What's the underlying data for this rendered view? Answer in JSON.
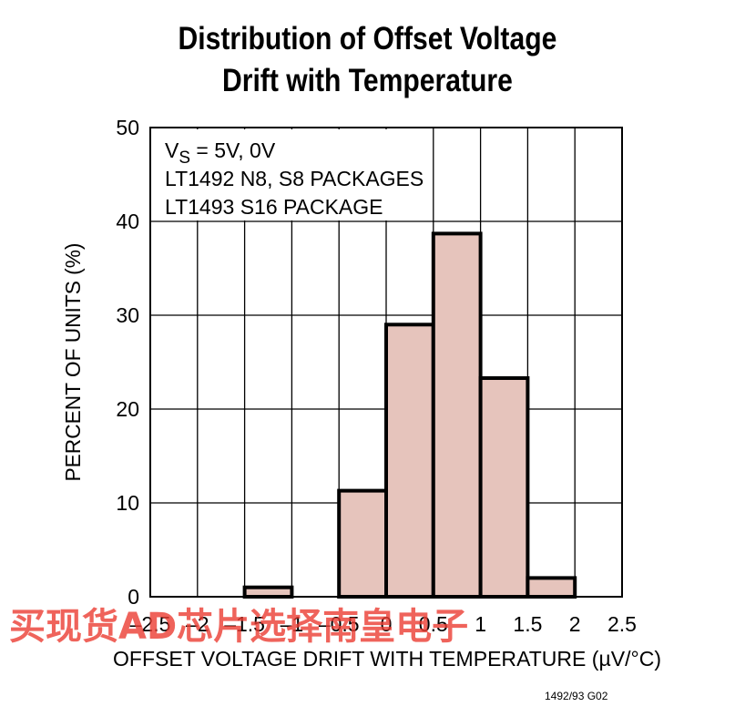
{
  "title_lines": [
    "Distribution of Offset Voltage",
    "Drift with Temperature"
  ],
  "chart_data": {
    "type": "bar",
    "title": "Distribution of Offset Voltage Drift with Temperature",
    "xlabel": "OFFSET VOLTAGE DRIFT WITH TEMPERATURE (µV/°C)",
    "ylabel": "PERCENT OF UNITS (%)",
    "xlim": [
      -2.5,
      2.5
    ],
    "ylim": [
      0,
      50
    ],
    "x_ticks": [
      -2.5,
      -2,
      -1.5,
      -1,
      -0.5,
      0,
      0.5,
      1,
      1.5,
      2,
      2.5
    ],
    "x_tick_labels": [
      "–2.5",
      "–2",
      "–1.5",
      "–1",
      "–0.5",
      "0",
      "0.5",
      "1",
      "1.5",
      "2",
      "2.5"
    ],
    "y_ticks": [
      0,
      10,
      20,
      30,
      40,
      50
    ],
    "y_tick_labels": [
      "0",
      "10",
      "20",
      "30",
      "40",
      "50"
    ],
    "bins": [
      {
        "from": -1.5,
        "to": -1.0,
        "value": 1
      },
      {
        "from": -0.5,
        "to": 0.0,
        "value": 11.3
      },
      {
        "from": 0.0,
        "to": 0.5,
        "value": 29
      },
      {
        "from": 0.5,
        "to": 1.0,
        "value": 38.7
      },
      {
        "from": 1.0,
        "to": 1.5,
        "value": 23.3
      },
      {
        "from": 1.5,
        "to": 2.0,
        "value": 2
      }
    ],
    "annotation_lines": [
      {
        "main": "V",
        "sub": "S",
        "rest": " = 5V, 0V"
      },
      {
        "main": "LT1492 N8, S8 PACKAGES"
      },
      {
        "main": "LT1493 S16 PACKAGE"
      }
    ],
    "grid": true,
    "bar_fill": "#e6c4bc",
    "bar_stroke": "#000000"
  },
  "figure_id": "1492/93 G02",
  "watermark": "买现货AD芯片选择南皇电子"
}
